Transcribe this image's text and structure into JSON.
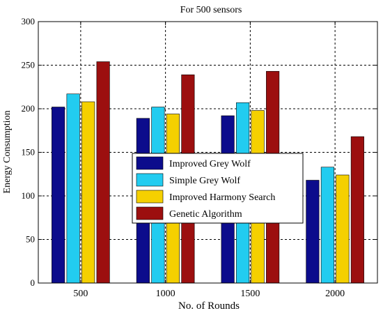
{
  "chart_data": {
    "type": "bar",
    "title": "For 500 sensors",
    "xlabel": "No. of Rounds",
    "ylabel": "Energy Consumption",
    "categories": [
      "500",
      "1000",
      "1500",
      "2000"
    ],
    "ylim": [
      0,
      300
    ],
    "yticks": [
      0,
      50,
      100,
      150,
      200,
      250,
      300
    ],
    "grid": true,
    "legend_position": "center",
    "series": [
      {
        "name": "Improved Grey Wolf",
        "color": "#0c0c8c",
        "values": [
          202,
          189,
          192,
          118
        ]
      },
      {
        "name": "Simple Grey Wolf",
        "color": "#22ccf0",
        "values": [
          217,
          202,
          207,
          133
        ]
      },
      {
        "name": "Improved Harmony Search",
        "color": "#f5d000",
        "values": [
          208,
          194,
          198,
          124
        ]
      },
      {
        "name": "Genetic Algorithm",
        "color": "#9c0f0f",
        "values": [
          254,
          239,
          243,
          168
        ]
      }
    ]
  }
}
